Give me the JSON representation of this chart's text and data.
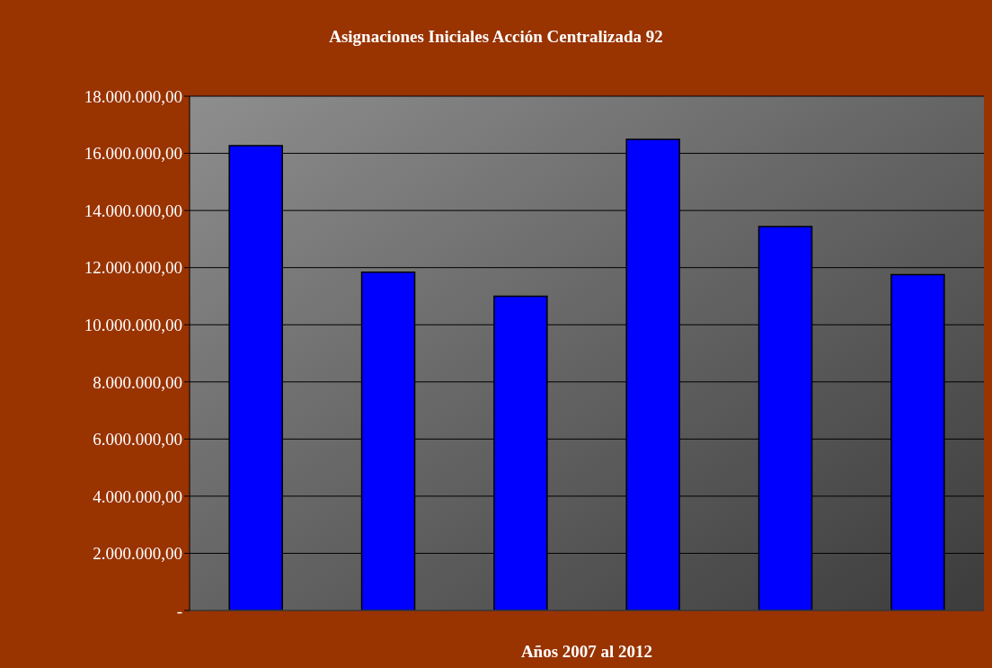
{
  "chart_data": {
    "type": "bar",
    "title": "Asignaciones Iniciales Acción Centralizada 92",
    "xlabel": "Años 2007 al 2012",
    "categories": [
      null,
      null,
      null,
      null,
      null,
      null
    ],
    "values": [
      16270000,
      11840000,
      11000000,
      16490000,
      13440000,
      11750000
    ],
    "color": "#0000ff",
    "ylim": [
      0,
      18000000
    ],
    "yticks": [
      {
        "value": 0,
        "label": "-"
      },
      {
        "value": 2000000,
        "label": "2.000.000,00"
      },
      {
        "value": 4000000,
        "label": "4.000.000,00"
      },
      {
        "value": 6000000,
        "label": "6.000.000,00"
      },
      {
        "value": 8000000,
        "label": "8.000.000,00"
      },
      {
        "value": 10000000,
        "label": "10.000.000,00"
      },
      {
        "value": 12000000,
        "label": "12.000.000,00"
      },
      {
        "value": 14000000,
        "label": "14.000.000,00"
      },
      {
        "value": 16000000,
        "label": "16.000.000,00"
      },
      {
        "value": 18000000,
        "label": "18.000.000,00"
      }
    ],
    "grid": "y",
    "legend": false
  }
}
